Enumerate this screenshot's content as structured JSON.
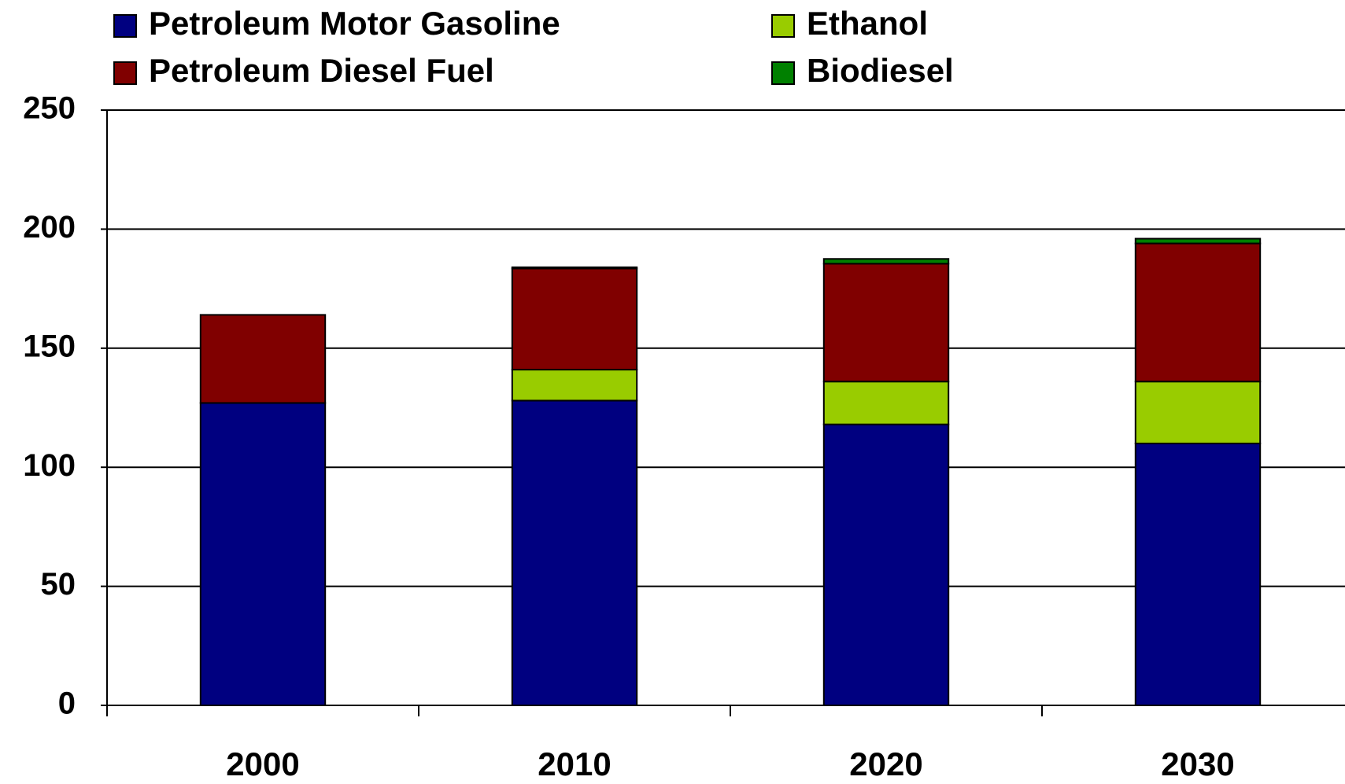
{
  "chart_data": {
    "type": "stacked_bar",
    "categories": [
      "2000",
      "2010",
      "2020",
      "2030"
    ],
    "series": [
      {
        "name": "Petroleum Motor Gasoline",
        "color": "#000080",
        "values": [
          127,
          128,
          118,
          110
        ]
      },
      {
        "name": "Ethanol",
        "color": "#99cc00",
        "values": [
          0,
          13,
          18,
          26
        ]
      },
      {
        "name": "Petroleum Diesel Fuel",
        "color": "#800000",
        "values": [
          37,
          42.5,
          49.5,
          58
        ]
      },
      {
        "name": "Biodiesel",
        "color": "#008000",
        "values": [
          0,
          0.5,
          2,
          2
        ]
      }
    ],
    "ylim": [
      0,
      250
    ],
    "yticks": [
      0,
      50,
      100,
      150,
      200,
      250
    ],
    "grid": true
  }
}
